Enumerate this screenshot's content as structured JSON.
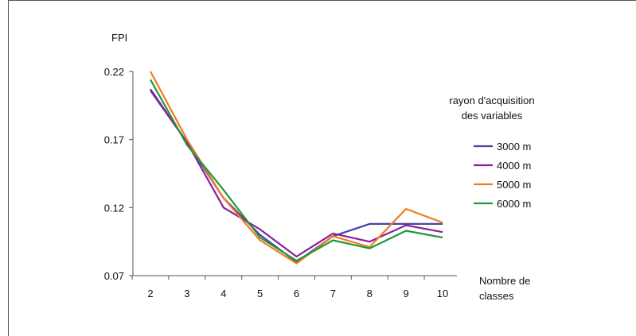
{
  "chart_data": {
    "type": "line",
    "ylabel": "FPI",
    "xlabel": "Nombre de\nclasses",
    "x": [
      2,
      3,
      4,
      5,
      6,
      7,
      8,
      9,
      10
    ],
    "xlim": [
      2,
      10
    ],
    "ylim": [
      0.07,
      0.22
    ],
    "yticks": [
      "0.07",
      "0.12",
      "0.17",
      "0.22"
    ],
    "xticks": [
      "2",
      "3",
      "4",
      "5",
      "6",
      "7",
      "8",
      "9",
      "10"
    ],
    "grid": false,
    "legend": {
      "title": "rayon d'acquisition\ndes variables",
      "placement": "right"
    },
    "series": [
      {
        "name": "3000 m",
        "color": "#4a43a0",
        "values": [
          0.206,
          0.168,
          0.127,
          0.1,
          0.08,
          0.099,
          0.108,
          0.108,
          0.108
        ]
      },
      {
        "name": "4000 m",
        "color": "#8a1e9e",
        "values": [
          0.207,
          0.168,
          0.12,
          0.104,
          0.084,
          0.101,
          0.095,
          0.107,
          0.102
        ]
      },
      {
        "name": "5000 m",
        "color": "#f47a1f",
        "values": [
          0.22,
          0.17,
          0.127,
          0.096,
          0.079,
          0.099,
          0.091,
          0.119,
          0.109
        ]
      },
      {
        "name": "6000 m",
        "color": "#1f9a3a",
        "values": [
          0.214,
          0.166,
          0.133,
          0.098,
          0.081,
          0.096,
          0.09,
          0.103,
          0.098
        ]
      }
    ]
  }
}
